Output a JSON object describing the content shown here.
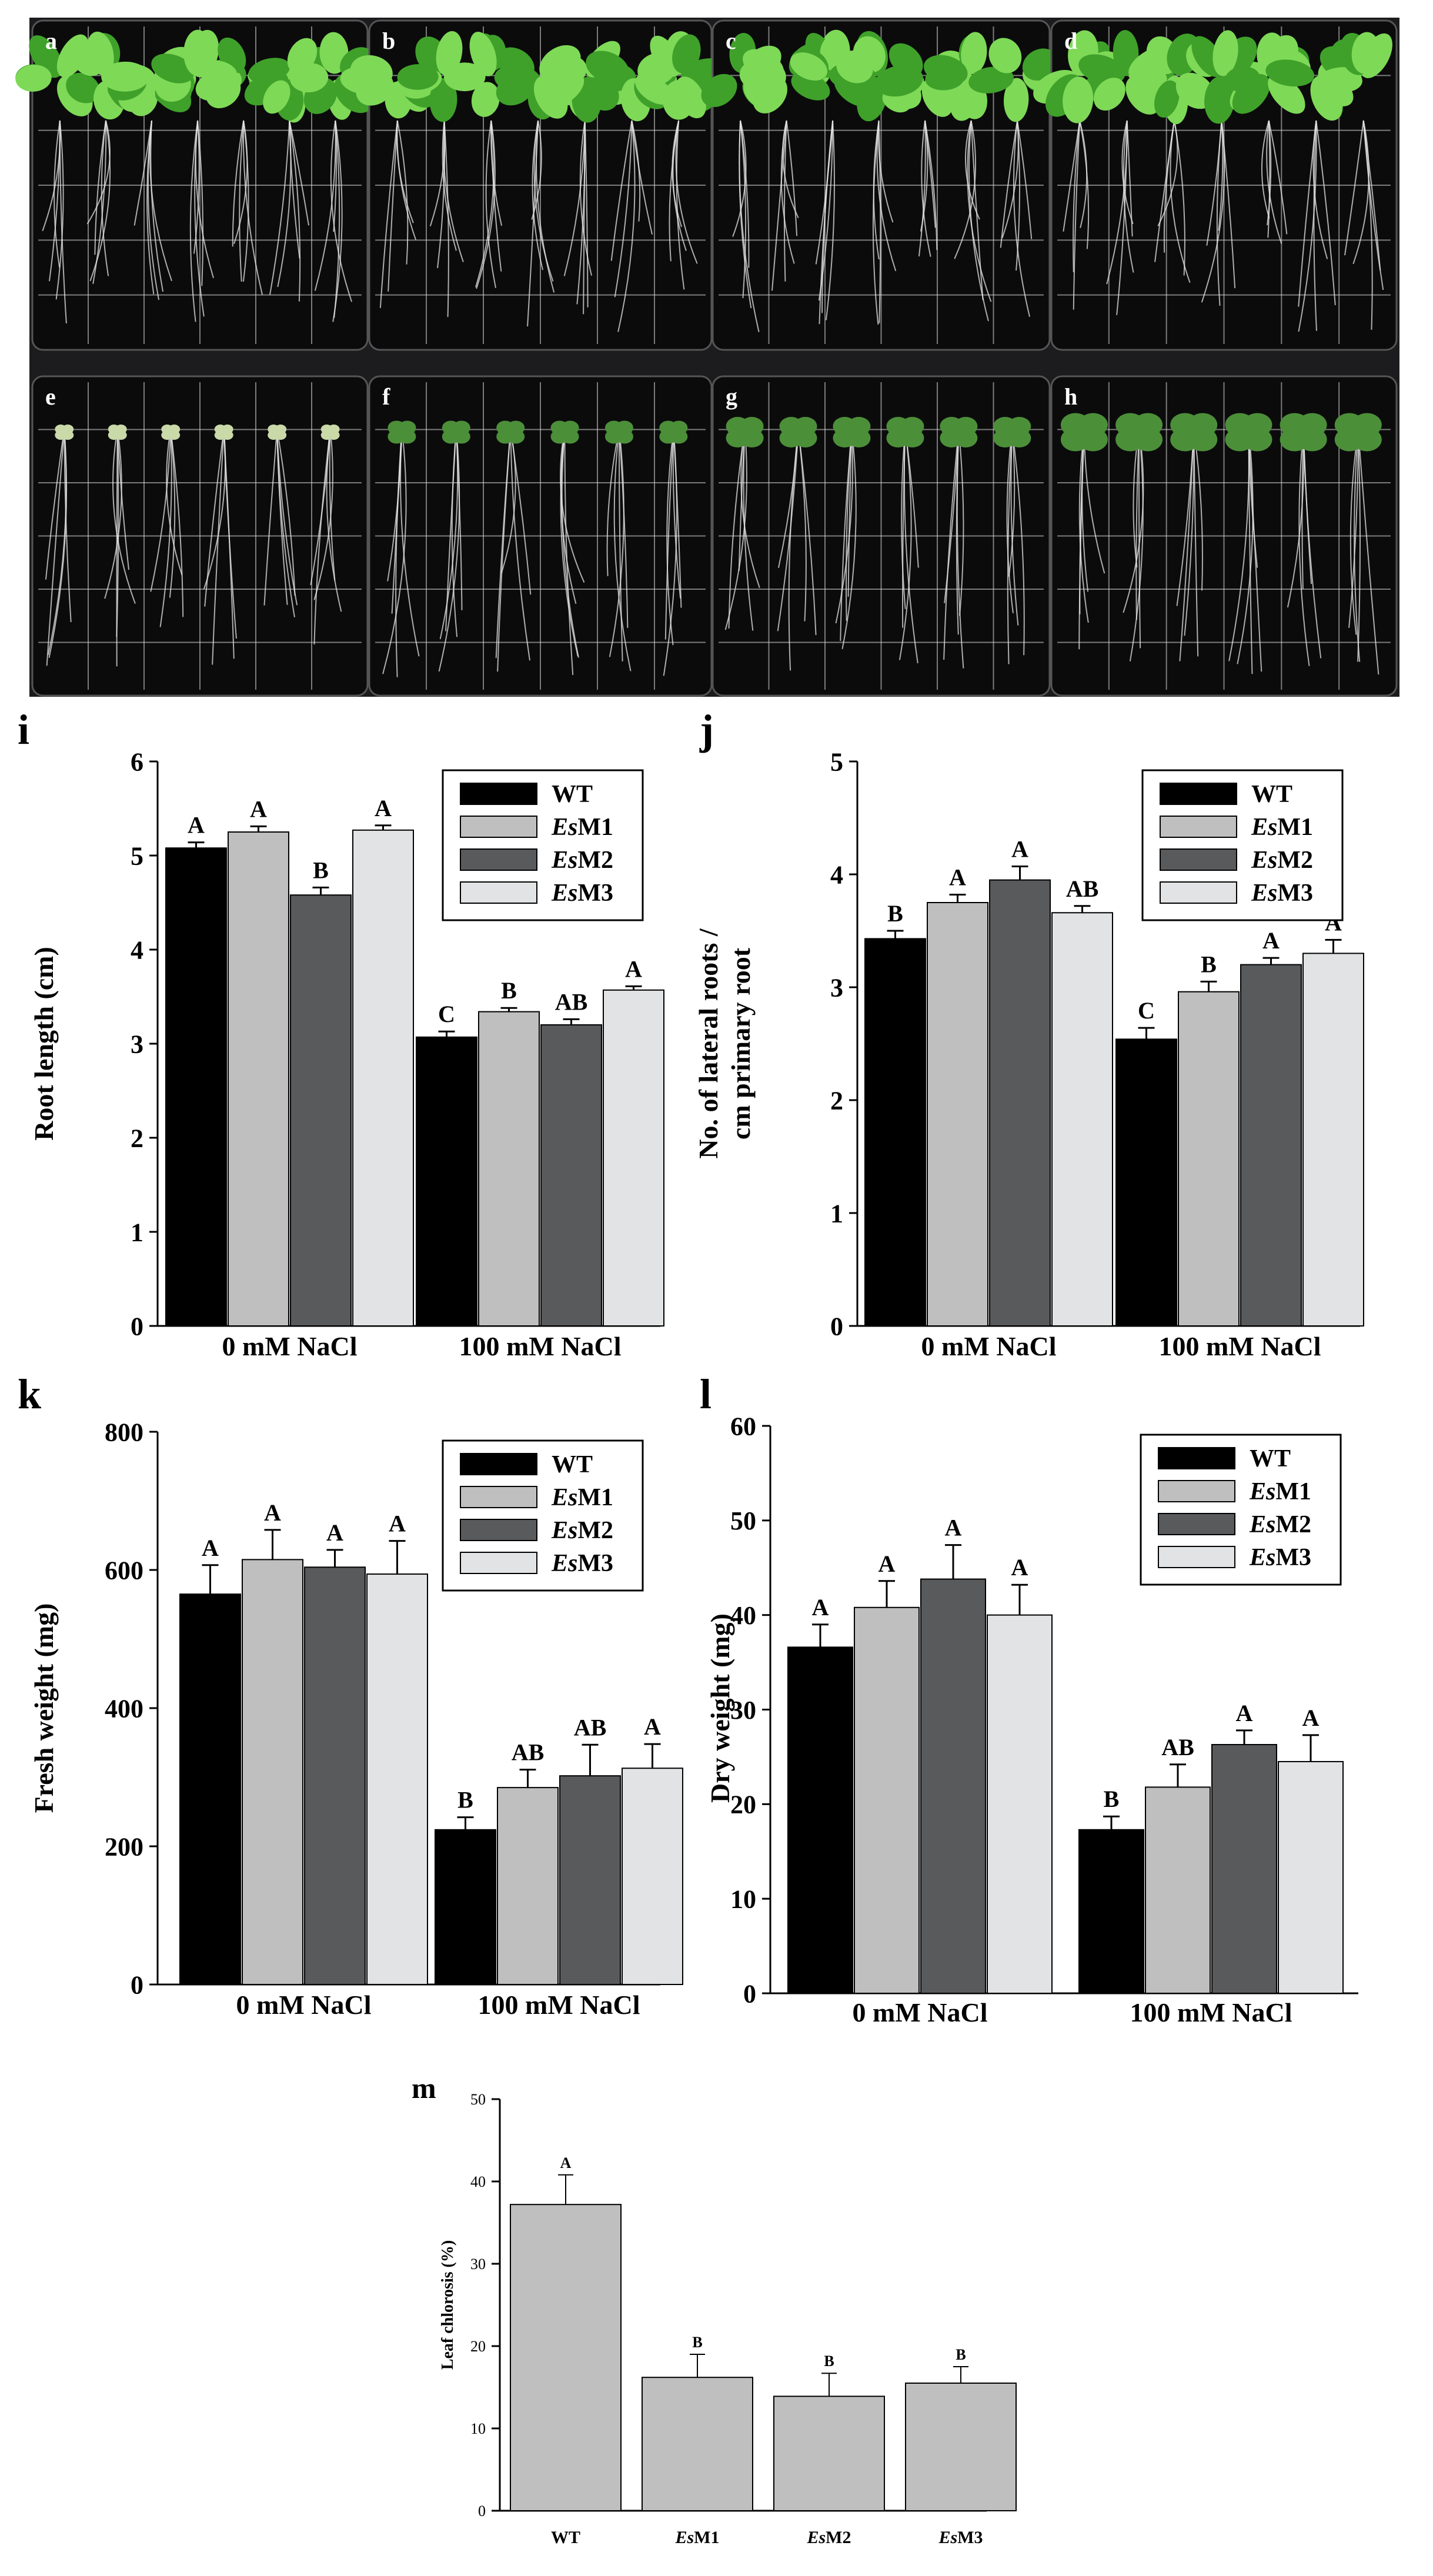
{
  "photo_panels": {
    "labels": [
      "a",
      "b",
      "c",
      "d",
      "e",
      "f",
      "g",
      "h"
    ],
    "colors": {
      "plate_bg": "#0b0b0c",
      "grid": "#d9d9d9",
      "leaf": "#3fa12a",
      "leaf_light": "#7ed957",
      "root": "#e6e6e6"
    }
  },
  "series_colors": {
    "WT": "#000000",
    "EsM1": "#bfbfbf",
    "EsM2": "#595a5c",
    "EsM3": "#e1e3e4"
  },
  "chart_data": [
    {
      "panel": "i",
      "type": "bar",
      "categories": [
        "0 mM NaCl",
        "100 mM NaCl"
      ],
      "ylabel": "Root length (cm)",
      "ylim": [
        0,
        6
      ],
      "yticks": [
        0,
        1,
        2,
        3,
        4,
        5,
        6
      ],
      "legend": [
        "WT",
        "EsM1",
        "EsM2",
        "EsM3"
      ],
      "legend_position": "top-right",
      "series": [
        {
          "name": "WT",
          "values": [
            5.08,
            3.07
          ],
          "errors": [
            0.06,
            0.06
          ],
          "letters": [
            "A",
            "C"
          ]
        },
        {
          "name": "EsM1",
          "values": [
            5.25,
            3.34
          ],
          "errors": [
            0.06,
            0.04
          ],
          "letters": [
            "A",
            "B"
          ]
        },
        {
          "name": "EsM2",
          "values": [
            4.58,
            3.2
          ],
          "errors": [
            0.08,
            0.06
          ],
          "letters": [
            "B",
            "AB"
          ]
        },
        {
          "name": "EsM3",
          "values": [
            5.27,
            3.57
          ],
          "errors": [
            0.05,
            0.04
          ],
          "letters": [
            "A",
            "A"
          ]
        }
      ]
    },
    {
      "panel": "j",
      "type": "bar",
      "categories": [
        "0 mM NaCl",
        "100 mM NaCl"
      ],
      "ylabel": "No. of lateral roots / cm primary root",
      "ylim": [
        0,
        5
      ],
      "yticks": [
        0,
        1,
        2,
        3,
        4,
        5
      ],
      "legend": [
        "WT",
        "EsM1",
        "EsM2",
        "EsM3"
      ],
      "legend_position": "top-right",
      "series": [
        {
          "name": "WT",
          "values": [
            3.43,
            2.54
          ],
          "errors": [
            0.07,
            0.1
          ],
          "letters": [
            "B",
            "C"
          ]
        },
        {
          "name": "EsM1",
          "values": [
            3.75,
            2.96
          ],
          "errors": [
            0.07,
            0.09
          ],
          "letters": [
            "A",
            "B"
          ]
        },
        {
          "name": "EsM2",
          "values": [
            3.95,
            3.2
          ],
          "errors": [
            0.12,
            0.06
          ],
          "letters": [
            "A",
            "A"
          ]
        },
        {
          "name": "EsM3",
          "values": [
            3.66,
            3.3
          ],
          "errors": [
            0.06,
            0.12
          ],
          "letters": [
            "AB",
            "A"
          ]
        }
      ]
    },
    {
      "panel": "k",
      "type": "bar",
      "categories": [
        "0 mM NaCl",
        "100 mM NaCl"
      ],
      "ylabel": "Fresh weight (mg)",
      "ylim": [
        0,
        800
      ],
      "yticks": [
        0,
        200,
        400,
        600,
        800
      ],
      "legend": [
        "WT",
        "EsM1",
        "EsM2",
        "EsM3"
      ],
      "legend_position": "top-right",
      "series": [
        {
          "name": "WT",
          "values": [
            565,
            224
          ],
          "errors": [
            42,
            18
          ],
          "letters": [
            "A",
            "B"
          ]
        },
        {
          "name": "EsM1",
          "values": [
            615,
            285
          ],
          "errors": [
            43,
            26
          ],
          "letters": [
            "A",
            "AB"
          ]
        },
        {
          "name": "EsM2",
          "values": [
            604,
            302
          ],
          "errors": [
            25,
            45
          ],
          "letters": [
            "A",
            "AB"
          ]
        },
        {
          "name": "EsM3",
          "values": [
            594,
            313
          ],
          "errors": [
            48,
            35
          ],
          "letters": [
            "A",
            "A"
          ]
        }
      ]
    },
    {
      "panel": "l",
      "type": "bar",
      "categories": [
        "0 mM NaCl",
        "100 mM NaCl"
      ],
      "ylabel": "Dry weight (mg)",
      "ylim": [
        0,
        60
      ],
      "yticks": [
        0,
        10,
        20,
        30,
        40,
        50,
        60
      ],
      "legend": [
        "WT",
        "EsM1",
        "EsM2",
        "EsM3"
      ],
      "legend_position": "top-right",
      "series": [
        {
          "name": "WT",
          "values": [
            36.6,
            17.3
          ],
          "errors": [
            2.4,
            1.4
          ],
          "letters": [
            "A",
            "B"
          ]
        },
        {
          "name": "EsM1",
          "values": [
            40.8,
            21.8
          ],
          "errors": [
            2.8,
            2.4
          ],
          "letters": [
            "A",
            "AB"
          ]
        },
        {
          "name": "EsM2",
          "values": [
            43.8,
            26.3
          ],
          "errors": [
            3.6,
            1.5
          ],
          "letters": [
            "A",
            "A"
          ]
        },
        {
          "name": "EsM3",
          "values": [
            40.0,
            24.5
          ],
          "errors": [
            3.2,
            2.8
          ],
          "letters": [
            "A",
            "A"
          ]
        }
      ]
    },
    {
      "panel": "m",
      "type": "bar",
      "categories": [
        "WT",
        "EsM1",
        "EsM2",
        "EsM3"
      ],
      "ylabel": "Leaf chlorosis (%)",
      "ylim": [
        0,
        50
      ],
      "yticks": [
        0,
        10,
        20,
        30,
        40,
        50
      ],
      "series": [
        {
          "name": "Leaf chlorosis",
          "values": [
            37.2,
            16.2,
            13.9,
            15.5
          ],
          "errors": [
            3.6,
            2.8,
            2.8,
            2.0
          ],
          "letters": [
            "A",
            "B",
            "B",
            "B"
          ]
        }
      ]
    }
  ]
}
